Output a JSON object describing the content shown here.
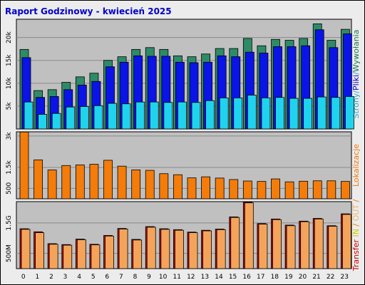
{
  "chart_data": {
    "type": "bar",
    "title": "Raport Godzinowy -  kwiecień 2025",
    "categories": [
      "0",
      "1",
      "2",
      "3",
      "4",
      "5",
      "6",
      "7",
      "8",
      "9",
      "10",
      "11",
      "12",
      "13",
      "14",
      "15",
      "16",
      "17",
      "18",
      "19",
      "20",
      "21",
      "22",
      "23"
    ],
    "panels": [
      {
        "label_parts": [
          {
            "text": "Strony",
            "color": "#2aa7c6"
          },
          {
            "text": "/",
            "color": "#2aa7c6"
          },
          {
            "text": "Pliki",
            "color": "#0000cc"
          },
          {
            "text": "/",
            "color": "#2aa7c6"
          },
          {
            "text": "Wywołania",
            "color": "#117a55"
          }
        ],
        "ylim": [
          0,
          24000
        ],
        "yticks": [
          {
            "value": 5000,
            "label": "5k"
          },
          {
            "value": 10000,
            "label": "10k"
          },
          {
            "value": 15000,
            "label": "15k"
          },
          {
            "value": 20000,
            "label": "20k"
          }
        ],
        "series": [
          {
            "name": "Wywołania",
            "color": "#2e8b68",
            "offset": 0,
            "values": [
              17400,
              8400,
              8600,
              10200,
              11400,
              12200,
              15000,
              15800,
              17400,
              17800,
              17400,
              16000,
              15800,
              16400,
              17600,
              17600,
              19800,
              18200,
              19600,
              19400,
              19800,
              23000,
              19400,
              21800
            ]
          },
          {
            "name": "Pliki",
            "color": "#0a14e6",
            "offset": 3,
            "values": [
              15600,
              6900,
              7100,
              8600,
              9600,
              10400,
              13600,
              14600,
              16000,
              15900,
              15900,
              14600,
              14500,
              14600,
              16000,
              15800,
              16800,
              16600,
              18000,
              18000,
              18200,
              21700,
              17800,
              20800
            ]
          },
          {
            "name": "Strony",
            "color": "#1fd3ef",
            "offset": 6,
            "values": [
              5900,
              3200,
              3400,
              4800,
              4900,
              5100,
              5600,
              5500,
              5900,
              5900,
              5800,
              5900,
              5800,
              6200,
              6800,
              6800,
              7400,
              6800,
              6900,
              6700,
              6700,
              7000,
              6900,
              7100
            ]
          }
        ]
      },
      {
        "label_parts": [
          {
            "text": "Lokalizacje",
            "color": "#f07800"
          }
        ],
        "ylim": [
          0,
          3200
        ],
        "yticks": [
          {
            "value": 500,
            "label": "500"
          },
          {
            "value": 1500,
            "label": "1.5k"
          },
          {
            "value": 3000,
            "label": "3k"
          }
        ],
        "series": [
          {
            "name": "Lokalizacje",
            "color": "#f47c0a",
            "offset": 0,
            "values": [
              3190,
              1860,
              1380,
              1590,
              1620,
              1650,
              1840,
              1560,
              1380,
              1360,
              1200,
              1150,
              1000,
              1050,
              990,
              920,
              850,
              830,
              950,
              810,
              840,
              860,
              860,
              830
            ]
          }
        ]
      },
      {
        "label_parts": [
          {
            "text": "Transfer",
            "color": "#cc0000"
          },
          {
            "text": " IN ",
            "color": "#cccc00"
          },
          {
            "text": "/",
            "color": "#f07800"
          },
          {
            "text": " OUT ",
            "color": "#f5b060"
          },
          {
            "text": "/",
            "color": "#f07800"
          }
        ],
        "ylim": [
          0,
          2200000000
        ],
        "yticks": [
          {
            "value": 500000000,
            "label": "500M"
          },
          {
            "value": 1500000000,
            "label": "1.5G"
          }
        ],
        "series": [
          {
            "name": "Transfer",
            "color": "#cc0000",
            "offset": 0,
            "values": [
              1310000000,
              1210000000,
              820000000,
              790000000,
              970000000,
              800000000,
              1090000000,
              1320000000,
              960000000,
              1380000000,
              1310000000,
              1280000000,
              1200000000,
              1260000000,
              1300000000,
              1700000000,
              2180000000,
              1480000000,
              1630000000,
              1430000000,
              1560000000,
              1650000000,
              1410000000,
              1800000000
            ]
          },
          {
            "name": "OUT",
            "color": "#f4a45a",
            "offset": 2,
            "values": [
              1290000000,
              1180000000,
              800000000,
              770000000,
              950000000,
              780000000,
              1070000000,
              1300000000,
              940000000,
              1360000000,
              1290000000,
              1260000000,
              1180000000,
              1240000000,
              1280000000,
              1680000000,
              2160000000,
              1460000000,
              1610000000,
              1410000000,
              1540000000,
              1630000000,
              1390000000,
              1780000000
            ]
          }
        ]
      }
    ]
  }
}
